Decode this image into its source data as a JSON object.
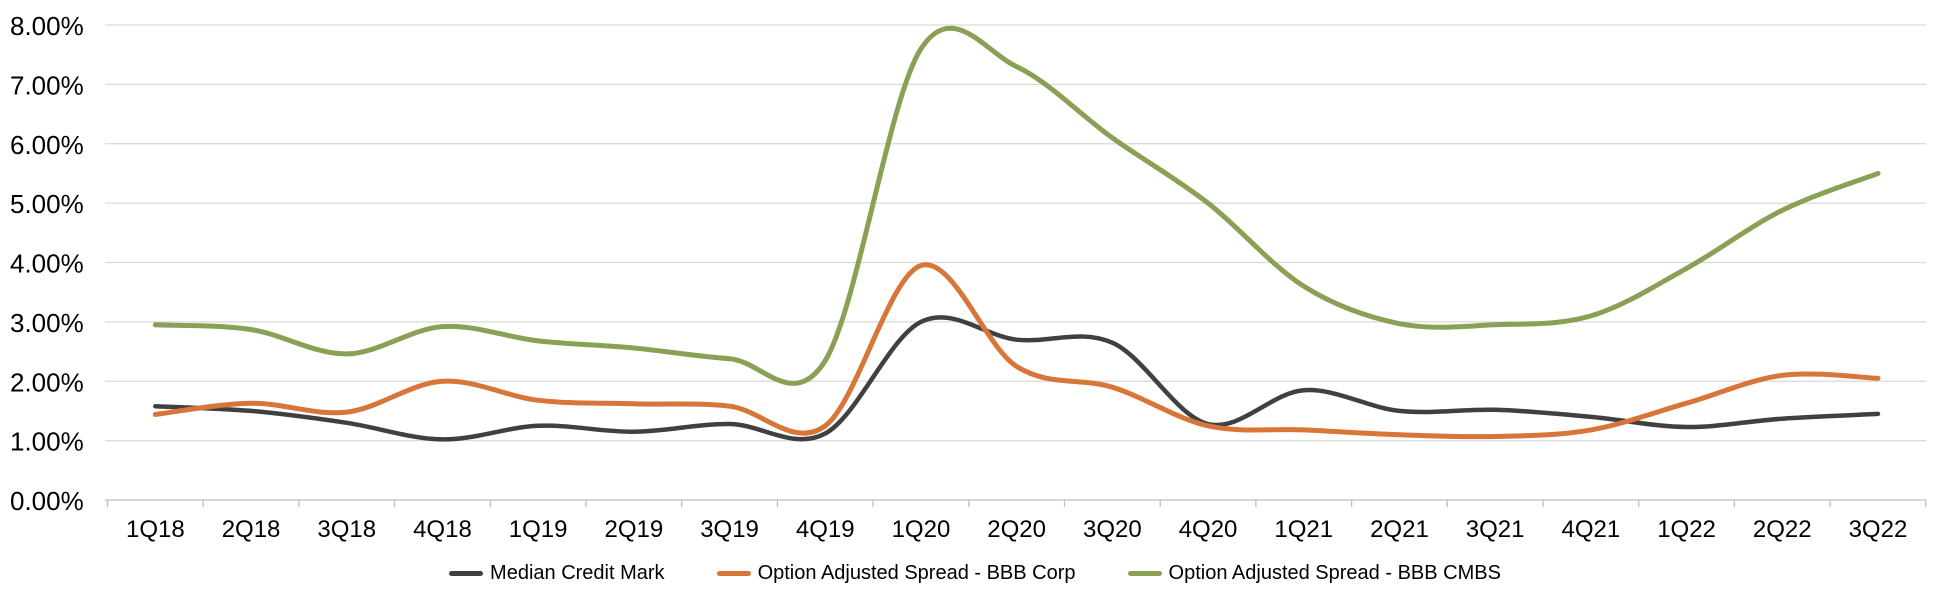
{
  "chart_data": {
    "type": "line",
    "title": "",
    "xlabel": "",
    "ylabel": "",
    "grid": true,
    "legend_position": "bottom",
    "smoothing": "spline",
    "categories": [
      "1Q18",
      "2Q18",
      "3Q18",
      "4Q18",
      "1Q19",
      "2Q19",
      "3Q19",
      "4Q19",
      "1Q20",
      "2Q20",
      "3Q20",
      "4Q20",
      "1Q21",
      "2Q21",
      "3Q21",
      "4Q21",
      "1Q22",
      "2Q22",
      "3Q22"
    ],
    "series": [
      {
        "name": "Median Credit Mark",
        "color": "#404040",
        "values": [
          1.58,
          1.5,
          1.3,
          1.02,
          1.25,
          1.15,
          1.28,
          1.12,
          3.0,
          2.7,
          2.65,
          1.28,
          1.85,
          1.5,
          1.52,
          1.4,
          1.23,
          1.37,
          1.45
        ]
      },
      {
        "name": "Option Adjusted Spread - BBB Corp",
        "color": "#D8763A",
        "values": [
          1.44,
          1.63,
          1.48,
          2.0,
          1.68,
          1.62,
          1.58,
          1.25,
          3.95,
          2.25,
          1.9,
          1.25,
          1.18,
          1.1,
          1.07,
          1.18,
          1.63,
          2.1,
          2.05
        ]
      },
      {
        "name": "Option Adjusted Spread - BBB CMBS",
        "color": "#8AA055",
        "values": [
          2.95,
          2.87,
          2.46,
          2.92,
          2.68,
          2.56,
          2.38,
          2.35,
          7.6,
          7.3,
          6.1,
          5.0,
          3.6,
          2.97,
          2.95,
          3.1,
          3.9,
          4.88,
          5.5
        ]
      }
    ],
    "y_axis": {
      "min": 0,
      "max": 8,
      "step": 1,
      "tick_labels": [
        "0.00%",
        "1.00%",
        "2.00%",
        "3.00%",
        "4.00%",
        "5.00%",
        "6.00%",
        "7.00%",
        "8.00%"
      ]
    },
    "colors": {
      "gridline": "#D9D9D9",
      "axis": "#BFBFBF",
      "text": "#000000"
    }
  }
}
